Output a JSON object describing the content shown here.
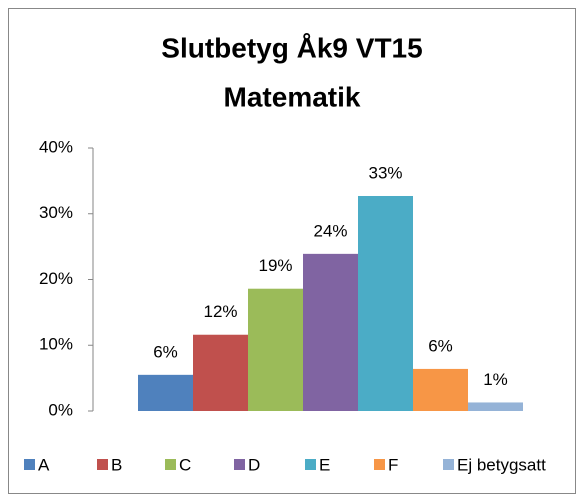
{
  "chart_data": {
    "type": "bar",
    "title": [
      "Slutbetyg Åk9 VT15",
      "Matematik"
    ],
    "categories": [
      "A",
      "B",
      "C",
      "D",
      "E",
      "F",
      "Ej betygsatt"
    ],
    "values": [
      5.5,
      11.6,
      18.6,
      23.9,
      32.7,
      6.4,
      1.3
    ],
    "value_labels": [
      "6%",
      "12%",
      "19%",
      "24%",
      "33%",
      "6%",
      "1%"
    ],
    "colors": [
      "#4f81bd",
      "#c0504d",
      "#9bbb59",
      "#8064a2",
      "#4bacc6",
      "#f79646",
      "#95b3d7"
    ],
    "ylim": [
      0,
      40
    ],
    "yticks": [
      {
        "value": 0,
        "label": "0%"
      },
      {
        "value": 10,
        "label": "10%"
      },
      {
        "value": 20,
        "label": "20%"
      },
      {
        "value": 30,
        "label": "30%"
      },
      {
        "value": 40,
        "label": "40%"
      }
    ],
    "legend": "bottom"
  }
}
